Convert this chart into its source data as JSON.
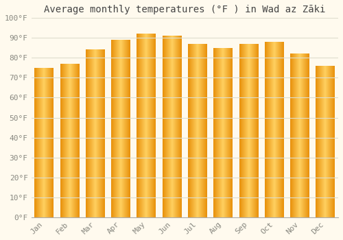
{
  "title": "Average monthly temperatures (°F ) in Wad az Zāki",
  "months": [
    "Jan",
    "Feb",
    "Mar",
    "Apr",
    "May",
    "Jun",
    "Jul",
    "Aug",
    "Sep",
    "Oct",
    "Nov",
    "Dec"
  ],
  "values": [
    75,
    77,
    84,
    89,
    92,
    91,
    87,
    85,
    87,
    88,
    82,
    76
  ],
  "bar_color_left": "#E8900A",
  "bar_color_center": "#FFD060",
  "bar_color_right": "#E8900A",
  "background_color": "#FFFAEE",
  "grid_color": "#DDDDCC",
  "ylim": [
    0,
    100
  ],
  "ytick_step": 10,
  "title_fontsize": 10,
  "tick_fontsize": 8,
  "font_family": "monospace"
}
